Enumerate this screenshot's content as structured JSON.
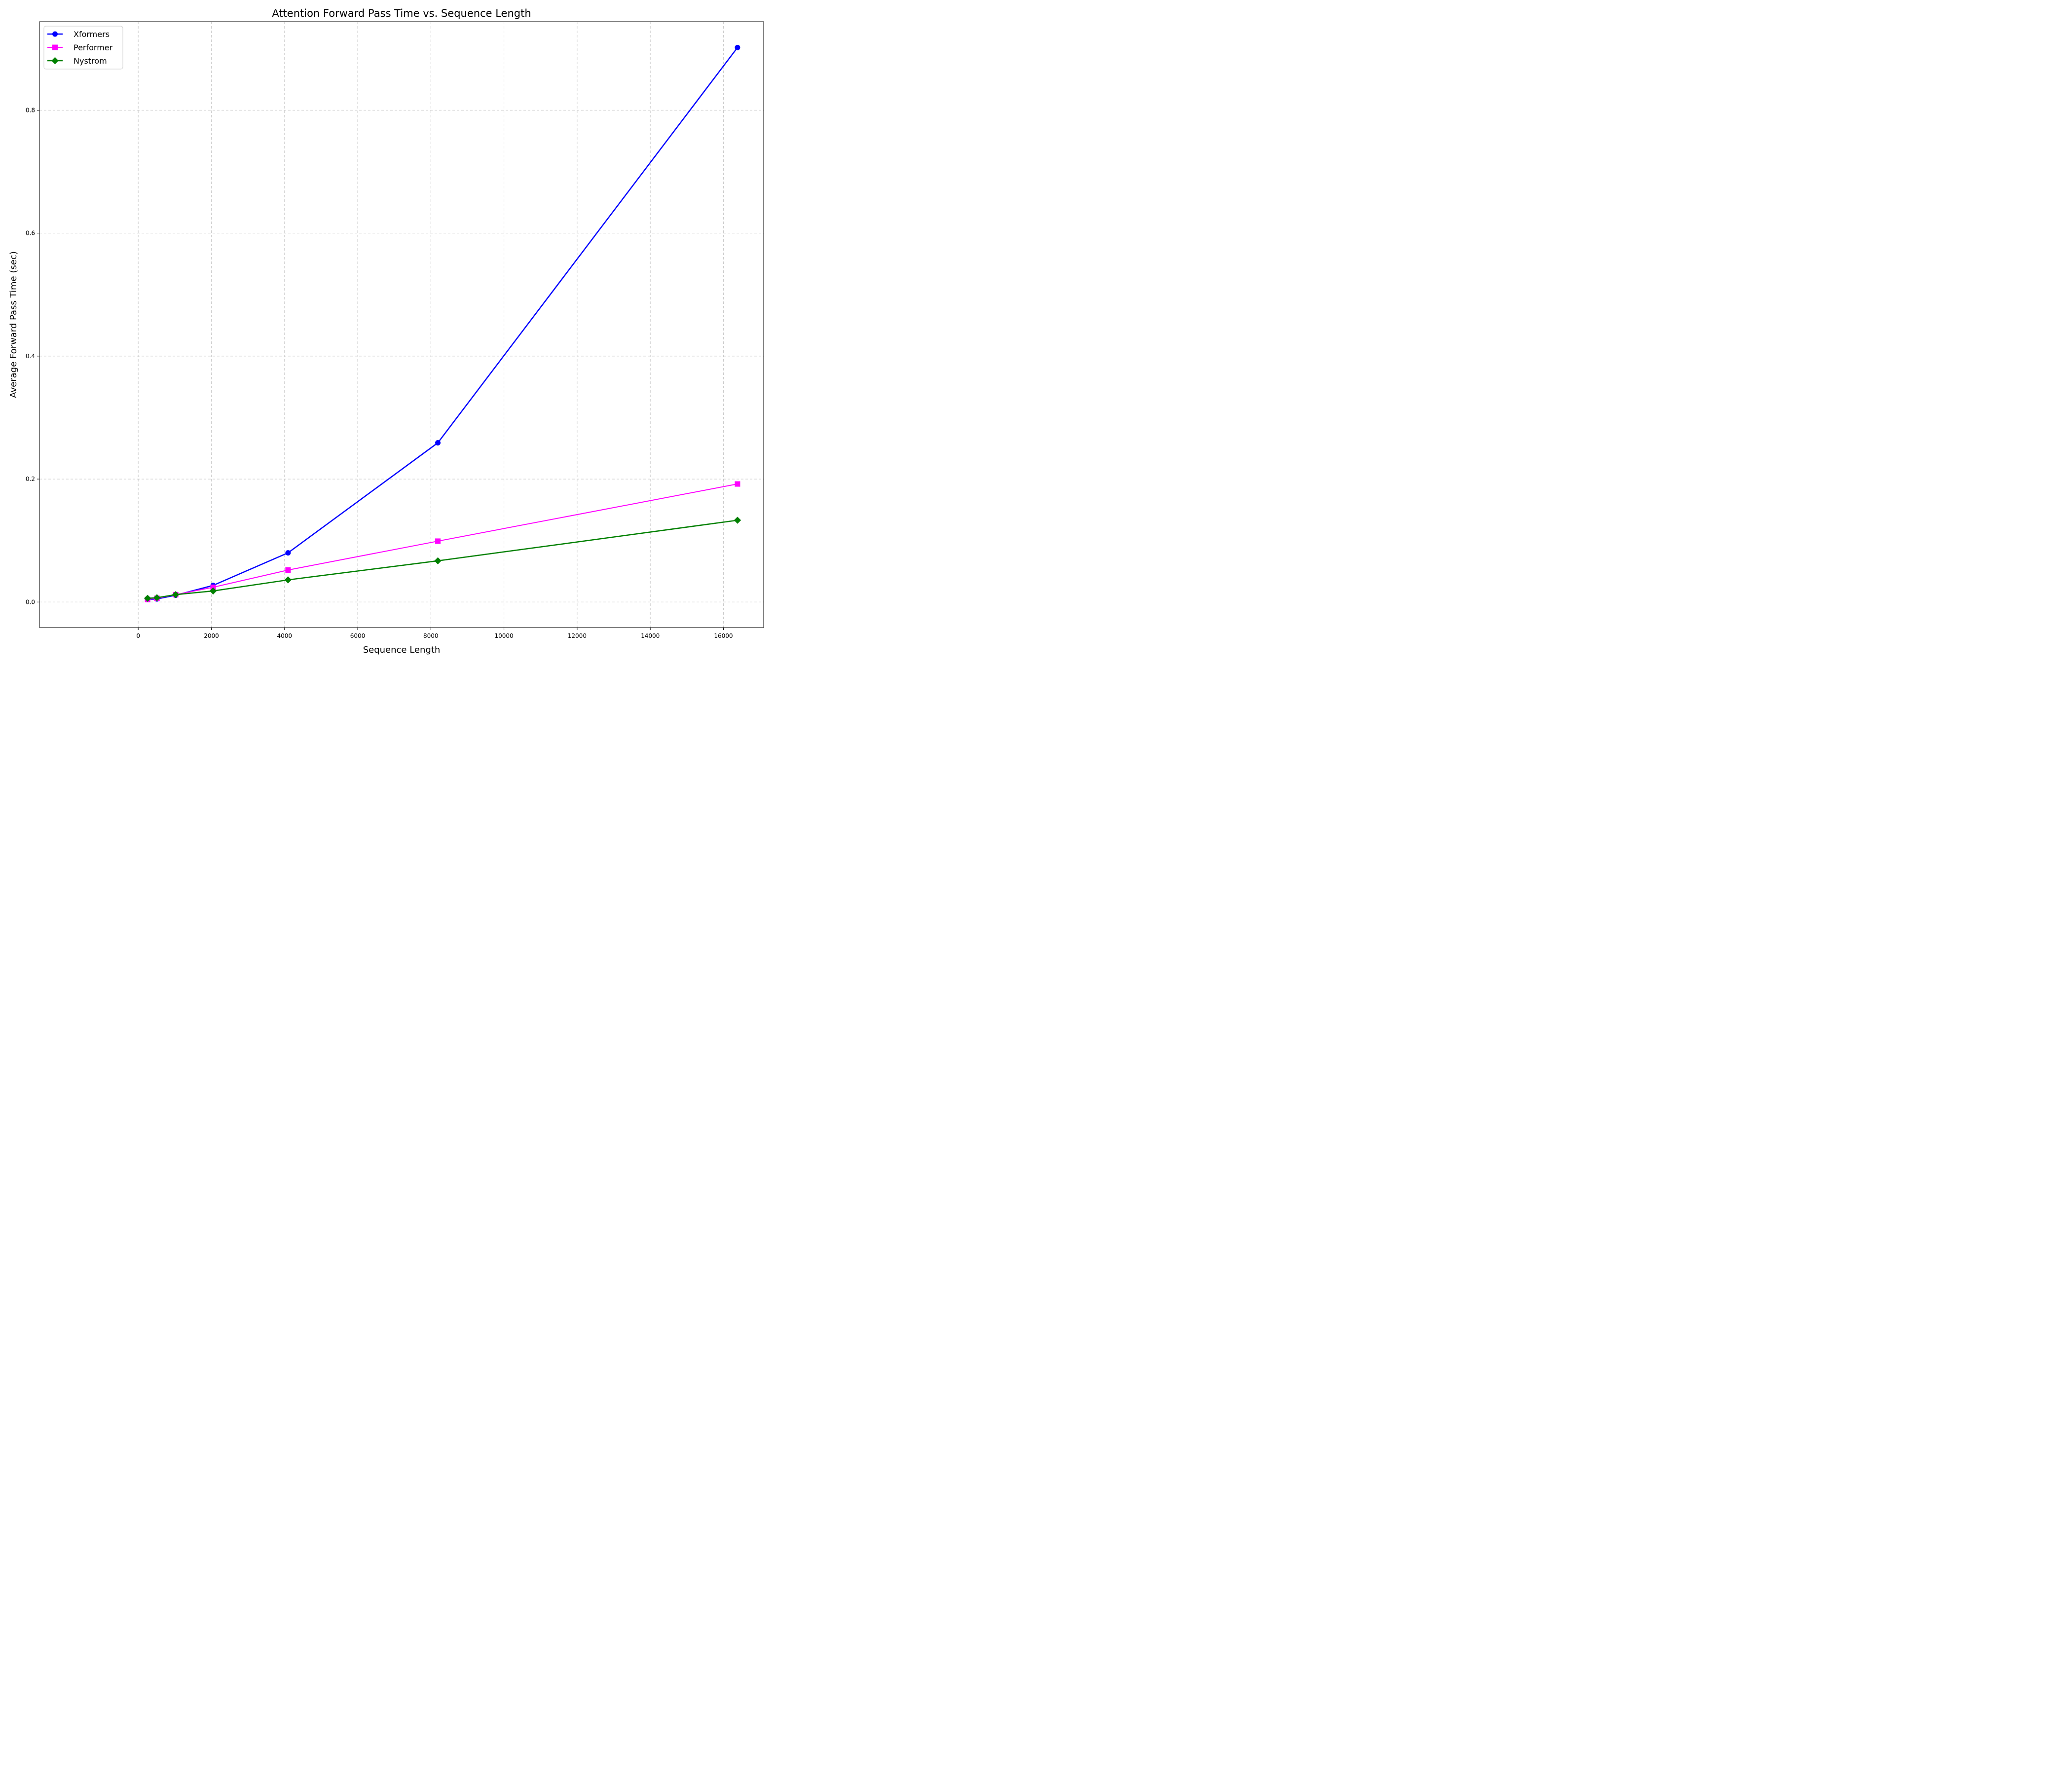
{
  "chart_data": {
    "type": "line",
    "title": "Attention Forward Pass Time vs. Sequence Length",
    "xlabel": "Sequence Length",
    "ylabel": "Average Forward Pass Time (sec)",
    "xlim": [
      -2700,
      17100
    ],
    "ylim": [
      -0.0415,
      0.944
    ],
    "xticks": [
      0,
      2000,
      4000,
      6000,
      8000,
      10000,
      12000,
      14000,
      16000
    ],
    "yticks": [
      0.0,
      0.2,
      0.4,
      0.6,
      0.8
    ],
    "xtick_labels": [
      "0",
      "2000",
      "4000",
      "6000",
      "8000",
      "10000",
      "12000",
      "14000",
      "16000"
    ],
    "ytick_labels": [
      "0.0",
      "0.2",
      "0.4",
      "0.6",
      "0.8"
    ],
    "grid": true,
    "legend_position": "top-left",
    "x": [
      256,
      512,
      1024,
      2048,
      4096,
      8192,
      16384
    ],
    "series": [
      {
        "name": "Xformers",
        "color": "#0000ff",
        "marker": "circle",
        "values": [
          0.004,
          0.005,
          0.011,
          0.027,
          0.08,
          0.259,
          0.902
        ]
      },
      {
        "name": "Performer",
        "color": "#ff00ff",
        "marker": "square",
        "values": [
          0.004,
          0.006,
          0.012,
          0.024,
          0.052,
          0.099,
          0.192
        ]
      },
      {
        "name": "Nystrom",
        "color": "#008000",
        "marker": "diamond",
        "values": [
          0.006,
          0.007,
          0.012,
          0.018,
          0.036,
          0.067,
          0.133
        ]
      }
    ]
  }
}
